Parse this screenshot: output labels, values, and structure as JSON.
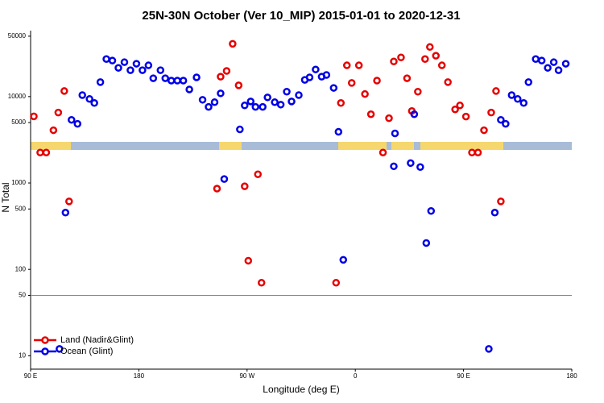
{
  "chart_data": {
    "type": "scatter",
    "title": "25N-30N October (Ver 10_MIP)   2015-01-01 to 2020-12-31",
    "x_label": "Longitude (deg E)",
    "y_label": "N Total",
    "log_y": true,
    "legend": "lower left",
    "hline": 50,
    "xlim": [
      90,
      540
    ],
    "ylim": [
      7,
      58000
    ],
    "xticks": [
      {
        "value": 90,
        "label": "90 E"
      },
      180,
      {
        "value": 270,
        "label": "90 W"
      },
      {
        "value": 360,
        "label": "0"
      },
      {
        "value": 450,
        "label": "90 E"
      },
      {
        "value": 540,
        "label": "180"
      }
    ],
    "yticks": [
      10,
      50,
      100,
      500,
      1000,
      5000,
      10000,
      50000
    ],
    "series": [
      {
        "name": "Land (Nadir&Glint)",
        "color": "#e60000",
        "x": [
          92.7,
          98,
          103,
          109,
          113,
          118,
          122,
          245,
          248,
          253,
          258,
          263,
          268,
          271,
          279,
          282,
          344,
          348,
          353,
          357,
          363,
          368,
          373,
          378,
          383,
          388,
          392,
          398,
          403,
          407,
          412,
          418,
          422,
          427,
          432,
          437,
          443,
          447,
          452,
          457,
          462,
          467,
          473,
          477,
          481
        ],
        "values": [
          5900,
          2250,
          2250,
          4080,
          6530,
          11600,
          612,
          860,
          17000,
          19800,
          40800,
          13500,
          915,
          126,
          1260,
          70,
          70,
          8430,
          23000,
          14400,
          23000,
          10700,
          6250,
          15300,
          2250,
          5620,
          25500,
          28400,
          16300,
          6810,
          11400,
          27200,
          37500,
          29700,
          23000,
          14700,
          7110,
          7900,
          5870,
          2250,
          2250,
          4080,
          6530,
          11600,
          612
        ]
      },
      {
        "name": "Ocean (Glint)",
        "color": "#0000e6",
        "x": [
          114,
          119,
          124,
          129,
          133,
          139,
          143,
          148,
          153,
          158,
          163,
          168,
          173,
          178,
          183,
          188,
          192,
          198,
          202,
          207,
          212,
          217,
          222,
          228,
          233,
          238,
          243,
          248,
          251,
          264,
          268,
          273,
          277,
          283,
          287,
          293,
          298,
          303,
          307,
          313,
          318,
          322,
          327,
          332,
          336,
          342,
          346,
          350,
          392,
          393,
          406,
          409,
          414,
          419,
          423,
          471,
          476,
          481,
          485,
          490,
          495,
          500,
          504,
          510,
          515,
          520,
          525,
          529,
          535
        ],
        "values": [
          12,
          454,
          5380,
          4840,
          10400,
          9380,
          8430,
          14700,
          27200,
          26100,
          21500,
          25000,
          20200,
          24000,
          20200,
          23000,
          16300,
          20200,
          16300,
          15300,
          15300,
          15300,
          12100,
          16700,
          9180,
          7590,
          8610,
          10900,
          1110,
          4170,
          7900,
          8790,
          7590,
          7590,
          9790,
          8610,
          8070,
          11400,
          8790,
          10400,
          15600,
          16700,
          20600,
          17000,
          17800,
          12600,
          3910,
          129,
          1560,
          3750,
          1700,
          6250,
          1530,
          202,
          474,
          12,
          454,
          5380,
          4840,
          10400,
          9380,
          8430,
          14700,
          27200,
          26100,
          21500,
          25000,
          20200,
          24000
        ]
      }
    ]
  }
}
